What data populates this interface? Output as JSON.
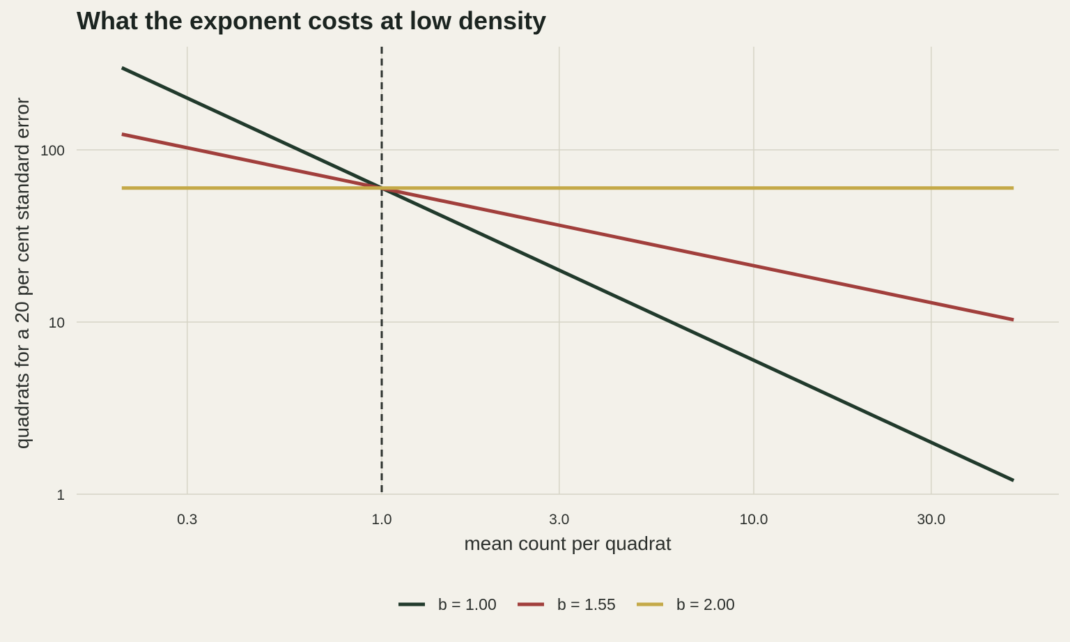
{
  "chart_data": {
    "type": "line",
    "title": "What the exponent costs at low density",
    "xlabel": "mean count per quadrat",
    "ylabel": "quadrats for a 20 per cent standard error",
    "x_scale": "log",
    "y_scale": "log",
    "xlim": [
      0.14,
      70
    ],
    "ylim": [
      0.9,
      450
    ],
    "x_ticks": [
      0.3,
      1.0,
      3.0,
      10.0,
      30.0
    ],
    "x_tick_labels": [
      "0.3",
      "1.0",
      "3.0",
      "10.0",
      "30.0"
    ],
    "y_ticks": [
      1,
      10,
      100
    ],
    "y_tick_labels": [
      "1",
      "10",
      "100"
    ],
    "grid": true,
    "legend_position": "bottom",
    "reference_line": {
      "axis": "x",
      "value": 1.0,
      "style": "dashed",
      "color": "#2e3330"
    },
    "series": [
      {
        "name": "b = 1.00",
        "color": "#213a2c",
        "x": [
          0.2,
          50
        ],
        "y": [
          300,
          1.2
        ]
      },
      {
        "name": "b = 1.55",
        "color": "#a13f3c",
        "x": [
          0.2,
          50
        ],
        "y": [
          123.3,
          10.3
        ]
      },
      {
        "name": "b = 2.00",
        "color": "#c4a948",
        "x": [
          0.2,
          50
        ],
        "y": [
          60,
          60
        ]
      }
    ]
  }
}
